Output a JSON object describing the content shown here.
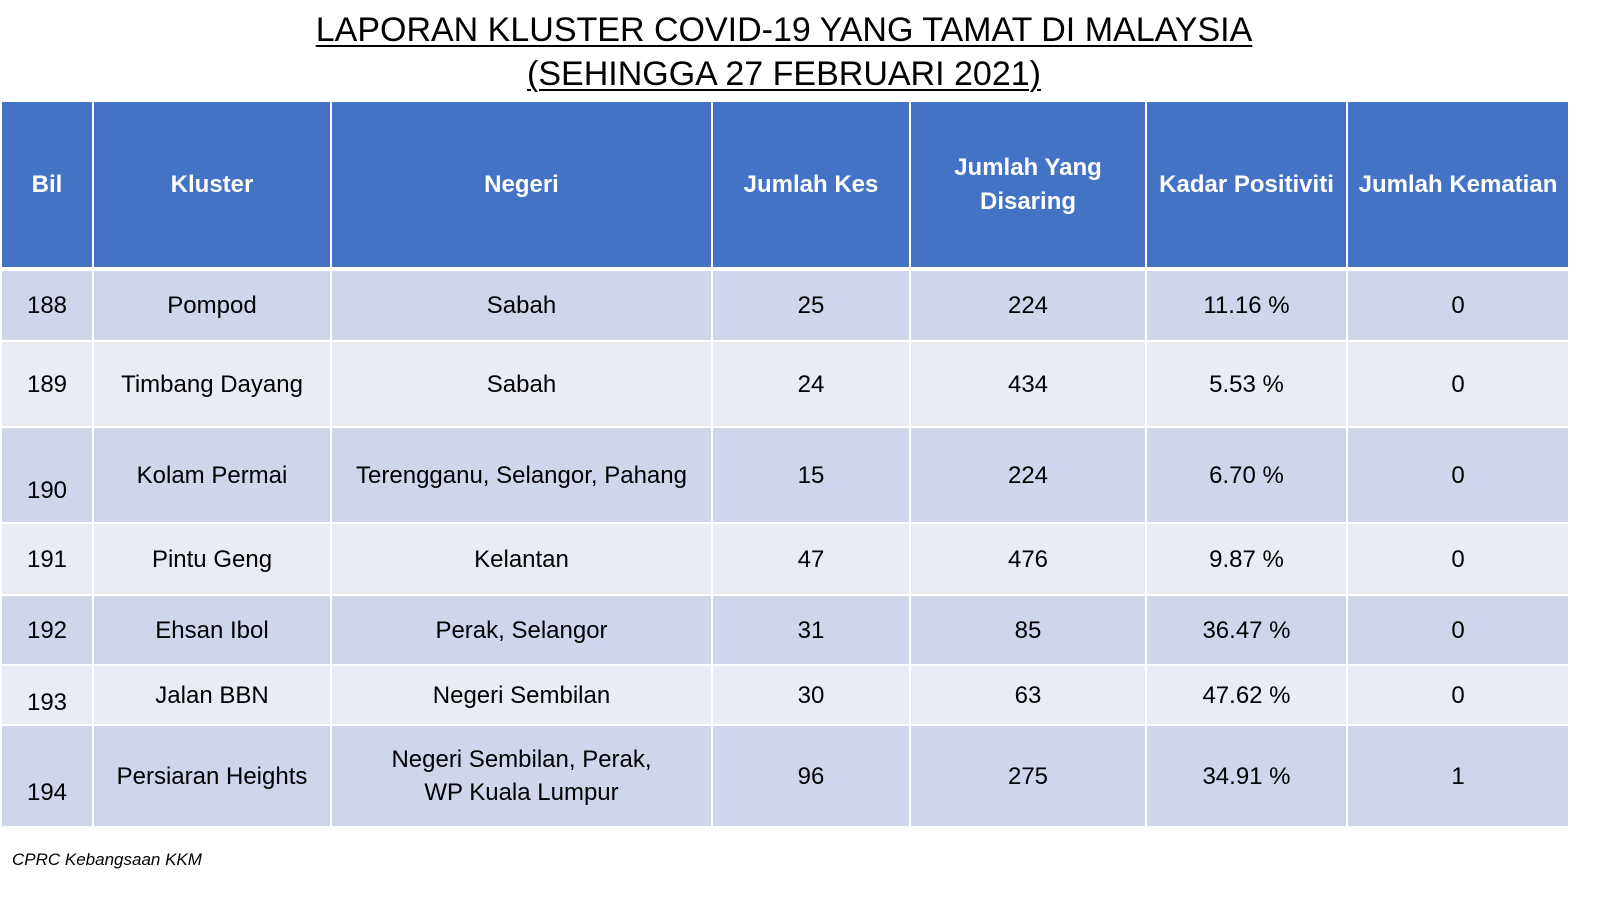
{
  "title": {
    "line1": "LAPORAN KLUSTER COVID-19 YANG TAMAT DI MALAYSIA",
    "line2": "(SEHINGGA  27 FEBRUARI 2021)"
  },
  "table": {
    "headers": [
      "Bil",
      "Kluster",
      "Negeri",
      "Jumlah Kes",
      "Jumlah Yang Disaring",
      "Kadar Positiviti",
      "Jumlah Kematian"
    ],
    "rows": [
      {
        "bil": "188",
        "kluster": "Pompod",
        "negeri": "Sabah",
        "negeri2": "",
        "kes": "25",
        "disaring": "224",
        "positiviti": "11.16 %",
        "kematian": "0"
      },
      {
        "bil": "189",
        "kluster": "Timbang Dayang",
        "negeri": "Sabah",
        "negeri2": "",
        "kes": "24",
        "disaring": "434",
        "positiviti": "5.53 %",
        "kematian": "0"
      },
      {
        "bil": "190",
        "kluster": "Kolam Permai",
        "negeri": "Terengganu, Selangor, Pahang",
        "negeri2": "",
        "kes": "15",
        "disaring": "224",
        "positiviti": "6.70 %",
        "kematian": "0"
      },
      {
        "bil": "191",
        "kluster": "Pintu Geng",
        "negeri": "Kelantan",
        "negeri2": "",
        "kes": "47",
        "disaring": "476",
        "positiviti": "9.87 %",
        "kematian": "0"
      },
      {
        "bil": "192",
        "kluster": "Ehsan Ibol",
        "negeri": "Perak, Selangor",
        "negeri2": "",
        "kes": "31",
        "disaring": "85",
        "positiviti": "36.47 %",
        "kematian": "0"
      },
      {
        "bil": "193",
        "kluster": "Jalan BBN",
        "negeri": "Negeri Sembilan",
        "negeri2": "",
        "kes": "30",
        "disaring": "63",
        "positiviti": "47.62 %",
        "kematian": "0"
      },
      {
        "bil": "194",
        "kluster": "Persiaran Heights",
        "negeri": "Negeri Sembilan, Perak,",
        "negeri2": "WP Kuala Lumpur",
        "kes": "96",
        "disaring": "275",
        "positiviti": "34.91 %",
        "kematian": "1"
      }
    ]
  },
  "footer": {
    "source": "CPRC Kebangsaan KKM"
  }
}
